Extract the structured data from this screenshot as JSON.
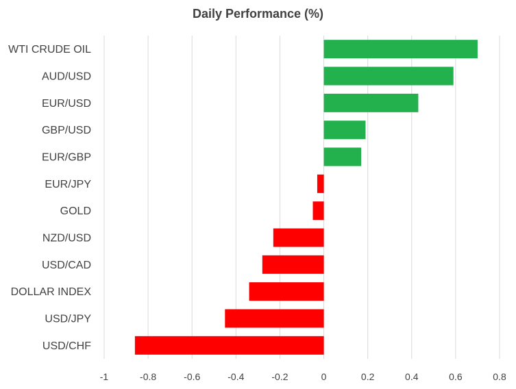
{
  "chart_data": {
    "type": "bar",
    "orientation": "horizontal",
    "title": "Daily Performance (%)",
    "xlabel": "",
    "ylabel": "",
    "categories": [
      "WTI CRUDE OIL",
      "AUD/USD",
      "EUR/USD",
      "GBP/USD",
      "EUR/GBP",
      "EUR/JPY",
      "GOLD",
      "NZD/USD",
      "USD/CAD",
      "DOLLAR INDEX",
      "USD/JPY",
      "USD/CHF"
    ],
    "values": [
      0.7,
      0.59,
      0.43,
      0.19,
      0.17,
      -0.03,
      -0.05,
      -0.23,
      -0.28,
      -0.34,
      -0.45,
      -0.86
    ],
    "xlim": [
      -1,
      0.8
    ],
    "xticks": [
      "-1",
      "-0.8",
      "-0.6",
      "-0.4",
      "-0.2",
      "0",
      "0.2",
      "0.4",
      "0.6",
      "0.8"
    ],
    "grid": "vertical",
    "legend": "none",
    "colors": {
      "positive": "#22b14c",
      "negative": "#ff0000",
      "grid": "#d9d9d9",
      "text": "#404040"
    }
  }
}
